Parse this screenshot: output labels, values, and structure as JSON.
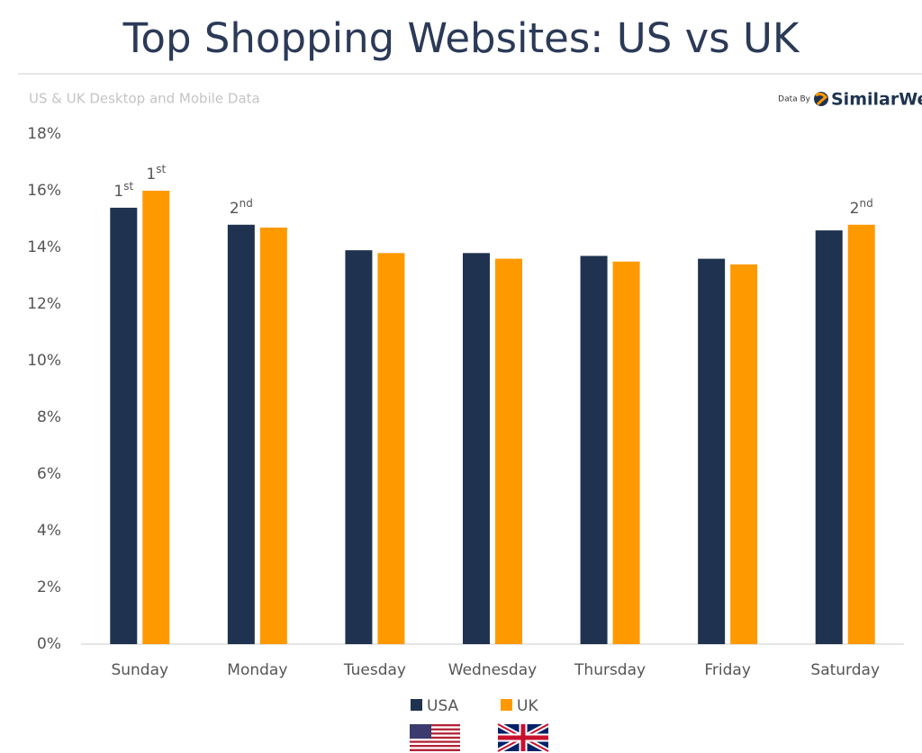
{
  "chart_data": {
    "type": "bar",
    "title": "Top Shopping Websites: US vs UK",
    "subtitle": "US & UK Desktop and Mobile Data",
    "source": {
      "prefix": "Data By",
      "brand": "SimilarWeb"
    },
    "categories": [
      "Sunday",
      "Monday",
      "Tuesday",
      "Wednesday",
      "Thursday",
      "Friday",
      "Saturday"
    ],
    "series": [
      {
        "name": "USA",
        "color": "#1f3350",
        "values": [
          15.4,
          14.8,
          13.9,
          13.8,
          13.7,
          13.6,
          14.6
        ],
        "rank_labels": [
          "1st",
          "2nd",
          null,
          null,
          null,
          null,
          null
        ]
      },
      {
        "name": "UK",
        "color": "#ff9900",
        "values": [
          16.0,
          14.7,
          13.8,
          13.6,
          13.5,
          13.4,
          14.8
        ],
        "rank_labels": [
          "1st",
          null,
          null,
          null,
          null,
          null,
          "2nd"
        ]
      }
    ],
    "ylim": [
      0,
      18
    ],
    "yticks": [
      {
        "value": 0,
        "label": "0%"
      },
      {
        "value": 2,
        "label": "2%"
      },
      {
        "value": 4,
        "label": "4%"
      },
      {
        "value": 6,
        "label": "6%"
      },
      {
        "value": 8,
        "label": "8%"
      },
      {
        "value": 10,
        "label": "10%"
      },
      {
        "value": 12,
        "label": "12%"
      },
      {
        "value": 14,
        "label": "14%"
      },
      {
        "value": 16,
        "label": "16%"
      },
      {
        "value": 18,
        "label": "18%"
      }
    ],
    "grid": false
  }
}
